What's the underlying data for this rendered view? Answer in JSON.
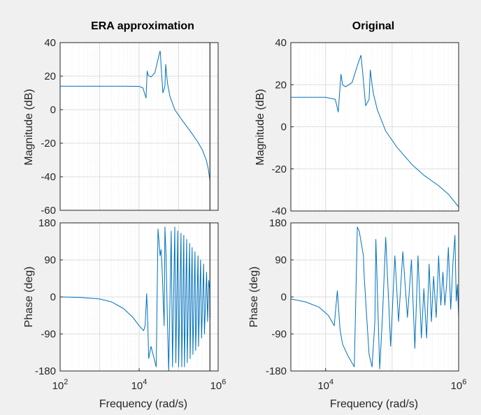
{
  "figure": {
    "background": "#f0f0f0",
    "axes_background": "#ffffff",
    "line_color": "#0072bd",
    "grid_color": "#e1e1e1",
    "axis_color": "#262626",
    "xlabel": "Frequency  (rad/s)"
  },
  "chart_data": [
    {
      "id": "era-magnitude",
      "type": "line",
      "title": "ERA approximation",
      "xlabel": "",
      "ylabel": "Magnitude (dB)",
      "xscale": "log",
      "xlim": [
        100,
        1000000
      ],
      "ylim": [
        -60,
        40
      ],
      "yticks": [
        40,
        20,
        0,
        -20,
        -40,
        -60
      ],
      "grid": true,
      "vertical_marker": 620000,
      "series": [
        {
          "x": [
            100,
            1000,
            5000,
            10000,
            12500,
            14000,
            15000,
            16000,
            17000,
            20000,
            25000,
            30000,
            34000,
            35000,
            36000,
            40000,
            45000,
            47000,
            50000,
            53000,
            60000,
            80000,
            120000,
            200000,
            300000,
            400000,
            500000,
            560000,
            600000,
            620000
          ],
          "y": [
            14,
            14,
            14,
            13.9,
            13,
            9,
            7,
            23,
            20.5,
            19.5,
            22,
            30,
            35,
            32,
            26,
            10,
            14,
            27,
            20,
            15,
            8,
            0,
            -6,
            -13,
            -19,
            -24,
            -30,
            -35,
            -40,
            -42
          ]
        }
      ]
    },
    {
      "id": "orig-magnitude",
      "type": "line",
      "title": "Original",
      "xlabel": "",
      "ylabel": "Magnitude (dB)",
      "xscale": "log",
      "xlim": [
        3000,
        1000000
      ],
      "ylim": [
        -40,
        40
      ],
      "yticks": [
        40,
        20,
        0,
        -20,
        -40
      ],
      "grid": true,
      "series": [
        {
          "x": [
            3000,
            10000,
            14000,
            15500,
            17000,
            18000,
            20000,
            25000,
            30000,
            34000,
            35000,
            36000,
            40000,
            45000,
            47000,
            50000,
            53000,
            60000,
            80000,
            120000,
            200000,
            300000,
            500000,
            700000,
            1000000
          ],
          "y": [
            14,
            14,
            13,
            7,
            25,
            20,
            19,
            21,
            29,
            34,
            30,
            26,
            10,
            13,
            27,
            20,
            15,
            8,
            -2,
            -10,
            -18,
            -23,
            -28,
            -32,
            -38
          ]
        }
      ]
    },
    {
      "id": "era-phase",
      "type": "line",
      "title": "",
      "xlabel": "Frequency  (rad/s)",
      "ylabel": "Phase (deg)",
      "xscale": "log",
      "xlim": [
        100,
        1000000
      ],
      "ylim": [
        -180,
        180
      ],
      "yticks": [
        180,
        90,
        0,
        -90,
        -180
      ],
      "xticks": [
        100,
        10000,
        1000000
      ],
      "grid": true,
      "vertical_marker": 620000,
      "series": [
        {
          "x": [
            100,
            300,
            1000,
            2000,
            4000,
            7000,
            10000,
            13000,
            14200,
            15500,
            16500,
            17500,
            20000,
            24000,
            27000,
            30000,
            34000,
            36000,
            38000,
            43000,
            45000,
            48000,
            52000,
            56000,
            65000,
            70000,
            80000,
            85000,
            95000,
            100000,
            115000,
            120000,
            135000,
            140000,
            160000,
            165000,
            190000,
            195000,
            220000,
            230000,
            260000,
            270000,
            310000,
            320000,
            360000,
            380000,
            430000,
            450000,
            510000,
            540000,
            580000,
            610000,
            620000
          ],
          "y": [
            0,
            -1,
            -5,
            -12,
            -28,
            -50,
            -70,
            -82,
            -70,
            8,
            -60,
            -150,
            -120,
            -150,
            -170,
            165,
            100,
            115,
            70,
            -70,
            170,
            100,
            -60,
            -180,
            160,
            -170,
            170,
            -160,
            160,
            -170,
            155,
            -170,
            150,
            -170,
            140,
            -160,
            130,
            -150,
            120,
            -140,
            110,
            -130,
            100,
            -120,
            90,
            -100,
            80,
            -90,
            60,
            -60,
            40,
            20,
            -50
          ]
        }
      ]
    },
    {
      "id": "orig-phase",
      "type": "line",
      "title": "",
      "xlabel": "Frequency  (rad/s)",
      "ylabel": "Phase (deg)",
      "xscale": "log",
      "xlim": [
        3000,
        1000000
      ],
      "ylim": [
        -180,
        180
      ],
      "yticks": [
        180,
        90,
        0,
        -90,
        -180
      ],
      "xticks": [
        10000,
        1000000
      ],
      "grid": true,
      "series": [
        {
          "x": [
            3000,
            5000,
            8000,
            11000,
            13500,
            15000,
            16500,
            18000,
            22000,
            27000,
            30000,
            32000,
            37000,
            38000,
            45000,
            50000,
            55000,
            57000,
            65000,
            72000,
            80000,
            95000,
            110000,
            125000,
            145000,
            170000,
            195000,
            220000,
            245000,
            275000,
            300000,
            330000,
            360000,
            390000,
            420000,
            460000,
            500000,
            540000,
            580000,
            620000,
            660000,
            700000,
            760000,
            820000,
            880000,
            920000,
            960000,
            1000000
          ],
          "y": [
            -5,
            -12,
            -25,
            -45,
            -70,
            15,
            -80,
            -115,
            -145,
            -170,
            170,
            160,
            100,
            50,
            -140,
            -170,
            -60,
            140,
            -175,
            -40,
            145,
            -120,
            100,
            -60,
            110,
            -50,
            90,
            -125,
            100,
            -100,
            20,
            -100,
            80,
            -60,
            50,
            -50,
            100,
            -20,
            60,
            -20,
            30,
            120,
            -30,
            80,
            150,
            -10,
            30,
            -50
          ]
        }
      ]
    }
  ]
}
